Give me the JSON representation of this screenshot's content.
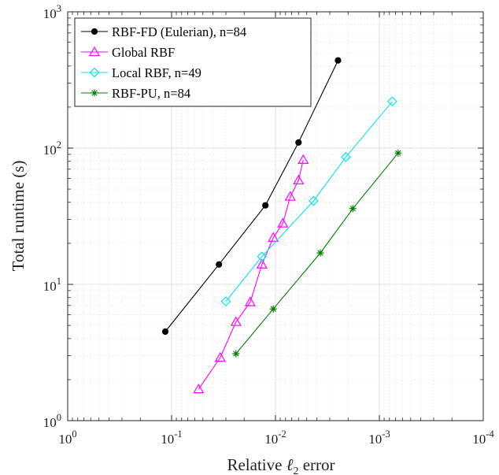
{
  "chart_data": {
    "type": "line",
    "xlabel": "Relative ℓ2 error",
    "xlabel_parts": {
      "prefix": "Relative ",
      "ell": "ℓ",
      "sub": "2",
      "suffix": " error"
    },
    "ylabel": "Total runtime (s)",
    "x_scale": "log",
    "y_scale": "log",
    "x_reversed": true,
    "xlim": [
      1,
      0.0001
    ],
    "ylim": [
      1,
      1000
    ],
    "grid": true,
    "legend_position": "top-left",
    "x_ticks": [
      {
        "value": 1,
        "base": "10",
        "exp": "0"
      },
      {
        "value": 0.1,
        "base": "10",
        "exp": "-1"
      },
      {
        "value": 0.01,
        "base": "10",
        "exp": "-2"
      },
      {
        "value": 0.001,
        "base": "10",
        "exp": "-3"
      },
      {
        "value": 0.0001,
        "base": "10",
        "exp": "-4"
      }
    ],
    "y_ticks": [
      {
        "value": 1,
        "base": "10",
        "exp": "0"
      },
      {
        "value": 10,
        "base": "10",
        "exp": "1"
      },
      {
        "value": 100,
        "base": "10",
        "exp": "2"
      },
      {
        "value": 1000,
        "base": "10",
        "exp": "3"
      }
    ],
    "series": [
      {
        "name": "RBF-FD (Eulerian), n=84",
        "color": "#000000",
        "marker": "dot",
        "x": [
          0.115,
          0.035,
          0.0125,
          0.006,
          0.0025
        ],
        "y": [
          4.5,
          14,
          38,
          110,
          440
        ]
      },
      {
        "name": "Global RBF",
        "color": "#ff00ff",
        "marker": "triangle",
        "x": [
          0.055,
          0.034,
          0.024,
          0.0175,
          0.0135,
          0.0105,
          0.0085,
          0.0072,
          0.006,
          0.0054
        ],
        "y": [
          1.7,
          2.9,
          5.3,
          7.4,
          14,
          22,
          28,
          44,
          58,
          82
        ]
      },
      {
        "name": "Local RBF, n=49",
        "color": "#00e5ee",
        "marker": "diamond",
        "x": [
          0.03,
          0.0135,
          0.0043,
          0.0021,
          0.00075
        ],
        "y": [
          7.5,
          16,
          41,
          86,
          220
        ]
      },
      {
        "name": "RBF-PU, n=84",
        "color": "#008000",
        "marker": "star",
        "x": [
          0.024,
          0.0105,
          0.0037,
          0.0018,
          0.00066
        ],
        "y": [
          3.1,
          6.6,
          17,
          36,
          92
        ]
      }
    ]
  }
}
